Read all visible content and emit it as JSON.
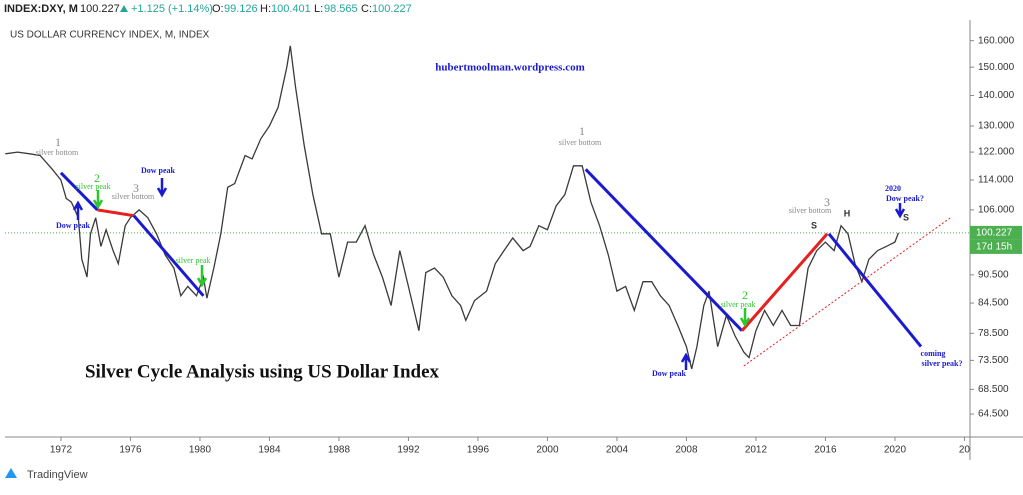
{
  "header": {
    "symbol": "INDEX:DXY, M",
    "price": 100.227,
    "change": "+1.125 (+1.14%)",
    "o_label": "O:",
    "open": 99.126,
    "h_label": "H:",
    "high": 100.401,
    "l_label": "L:",
    "low": 98.565,
    "c_label": "C:",
    "close": 100.227
  },
  "chart_data": {
    "type": "line",
    "title": "US DOLLAR CURRENCY INDEX, M, INDEX",
    "subtitle": "hubertmoolman.wordpress.com",
    "headline": "Silver Cycle Analysis using US Dollar Index",
    "log_scale": true,
    "color": "#3a3a3a",
    "x": [
      1968.8,
      1969.5,
      1970.2,
      1970.8,
      1971.5,
      1972.0,
      1972.3,
      1972.6,
      1973.0,
      1973.2,
      1973.5,
      1973.7,
      1974.0,
      1974.3,
      1974.6,
      1975.0,
      1975.3,
      1975.7,
      1976.0,
      1976.5,
      1977.0,
      1977.5,
      1978.0,
      1978.5,
      1978.9,
      1979.3,
      1979.8,
      1980.2,
      1980.4,
      1980.8,
      1981.2,
      1981.6,
      1982.0,
      1982.6,
      1983.0,
      1983.5,
      1984.0,
      1984.5,
      1985.0,
      1985.2,
      1985.5,
      1986.0,
      1986.5,
      1987.0,
      1987.5,
      1988.0,
      1988.5,
      1989.0,
      1989.5,
      1990.0,
      1990.5,
      1991.0,
      1991.5,
      1992.0,
      1992.6,
      1993.0,
      1993.5,
      1994.0,
      1994.5,
      1995.0,
      1995.3,
      1995.8,
      1996.5,
      1997.0,
      1997.5,
      1998.0,
      1998.6,
      1999.0,
      1999.5,
      2000.0,
      2000.5,
      2001.0,
      2001.5,
      2002.0,
      2002.5,
      2003.0,
      2003.5,
      2004.0,
      2004.5,
      2005.0,
      2005.5,
      2006.0,
      2006.5,
      2007.0,
      2007.5,
      2008.0,
      2008.3,
      2008.6,
      2009.0,
      2009.3,
      2009.8,
      2010.3,
      2010.8,
      2011.3,
      2011.6,
      2012.0,
      2012.5,
      2013.0,
      2013.5,
      2014.0,
      2014.5,
      2015.0,
      2015.5,
      2016.0,
      2016.5,
      2016.9,
      2017.3,
      2017.7,
      2018.1,
      2018.5,
      2019.0,
      2019.5,
      2020.0,
      2020.2
    ],
    "values": [
      121.5,
      122,
      121.5,
      121,
      117,
      114,
      109,
      108,
      104,
      94,
      90,
      100,
      104,
      97,
      101,
      96,
      93,
      102,
      104,
      106,
      104,
      100,
      95,
      92,
      86,
      88,
      86,
      90,
      85.5,
      92,
      100,
      112,
      113,
      121,
      120,
      126,
      130,
      136,
      150,
      158,
      143,
      124,
      110,
      100,
      100,
      90,
      98,
      98,
      102,
      95,
      90,
      84,
      96,
      88,
      79,
      91,
      92,
      90,
      86,
      84,
      81,
      85,
      87,
      93,
      96,
      99,
      96,
      97,
      102,
      101,
      107,
      110,
      118,
      118,
      108,
      102,
      95,
      87,
      88,
      83,
      89,
      89,
      86,
      84,
      80,
      76,
      72,
      76,
      84,
      87,
      76,
      82,
      78,
      75,
      74,
      79,
      83,
      80,
      83,
      80,
      80,
      92,
      96,
      98,
      96,
      102,
      100,
      93,
      89,
      94,
      96,
      97,
      98,
      100.227
    ],
    "trend_lines": [
      {
        "color": "#1a1ad0",
        "x": [
          1972.0,
          1974.1
        ],
        "values": [
          116,
          106
        ]
      },
      {
        "color": "#e52020",
        "x": [
          1974.1,
          1976.2
        ],
        "values": [
          106,
          104.5
        ]
      },
      {
        "color": "#1a1ad0",
        "x": [
          1976.2,
          1980.2
        ],
        "values": [
          104.5,
          86
        ]
      },
      {
        "color": "#1a1ad0",
        "x": [
          2002.2,
          2011.2
        ],
        "values": [
          117,
          79
        ]
      },
      {
        "color": "#e52020",
        "x": [
          2011.2,
          2016.1
        ],
        "values": [
          79,
          100
        ]
      },
      {
        "color": "#1a1ad0",
        "x": [
          2016.2,
          2021.5
        ],
        "values": [
          100,
          76
        ]
      },
      {
        "color": "#e52020",
        "style": "dotted",
        "x": [
          2011.3,
          2023.2
        ],
        "values": [
          72.5,
          104
        ]
      }
    ],
    "last_price": 100.227,
    "countdown": "17d 15h",
    "xlim": [
      1968.78,
      2024.32
    ],
    "xticks": [
      1972,
      1976,
      1980,
      1984,
      1988,
      1992,
      1996,
      2000,
      2004,
      2008,
      2012,
      2016,
      2020,
      {
        "value": 2024,
        "label": "20"
      }
    ],
    "ylim": [
      61,
      165
    ],
    "yticks": [
      {
        "value": 64.5,
        "label": "64.500"
      },
      {
        "value": 68.5,
        "label": "68.500"
      },
      {
        "value": 73.5,
        "label": "73.500"
      },
      {
        "value": 78.5,
        "label": "78.500"
      },
      {
        "value": 84.5,
        "label": "84.500"
      },
      {
        "value": 90.5,
        "label": "90.500"
      },
      {
        "value": 106,
        "label": "106.000"
      },
      {
        "value": 114,
        "label": "114.000"
      },
      {
        "value": 122,
        "label": "122.000"
      },
      {
        "value": 130,
        "label": "130.000"
      },
      {
        "value": 140,
        "label": "140.000"
      },
      {
        "value": 150,
        "label": "150.000"
      },
      {
        "value": 160,
        "label": "160.000"
      }
    ],
    "annotations": [
      "1",
      "silver bottom",
      "2",
      "silver peak",
      "3",
      "silver bottom",
      "Dow peak",
      "Dow peak",
      "silver peak",
      "1",
      "silver bottom",
      "2",
      "silver peak",
      "Dow peak",
      "3",
      "silver bottom",
      "S",
      "H",
      "S",
      "2020",
      "Dow peak?",
      "coming",
      "silver peak?"
    ]
  },
  "footer": "TradingView"
}
